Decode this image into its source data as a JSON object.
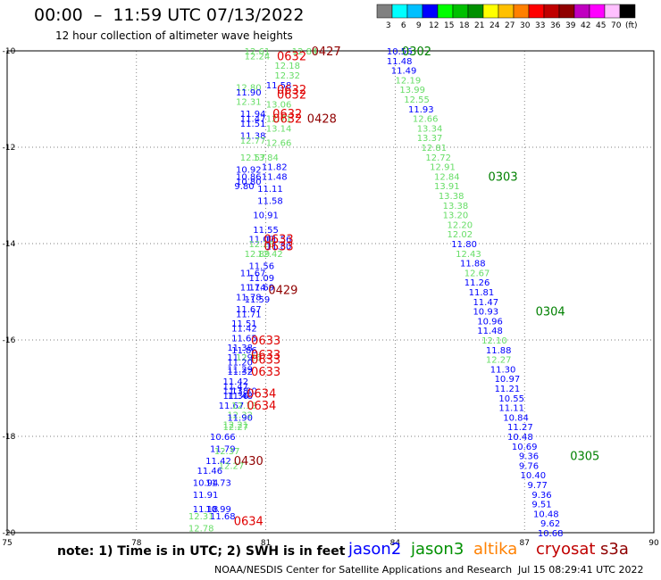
{
  "header": {
    "title": "00:00  –  11:59 UTC 07/13/2022",
    "subtitle": "12 hour collection of altimeter wave heights"
  },
  "colorbar": {
    "colors": [
      "#808080",
      "#00ffff",
      "#00c0ff",
      "#0000ff",
      "#00ff00",
      "#00c000",
      "#009000",
      "#ffff00",
      "#ffc000",
      "#ff8000",
      "#ff0000",
      "#c00000",
      "#900000",
      "#c000c0",
      "#ff00ff",
      "#ffc0ff",
      "#000000"
    ],
    "labels": [
      "3",
      "6",
      "9",
      "12",
      "15",
      "18",
      "21",
      "24",
      "27",
      "30",
      "33",
      "36",
      "39",
      "42",
      "45",
      "70",
      "(ft)"
    ]
  },
  "legend": {
    "note": "note:  1) Time is in UTC;  2) SWH is in feet",
    "items": [
      {
        "name": "jason2",
        "color": "#0000ff"
      },
      {
        "name": "jason3",
        "color": "#009000"
      },
      {
        "name": "altika",
        "color": "#ff8000"
      },
      {
        "name": "cryosat",
        "color": "#c00000"
      },
      {
        "name": "s3a",
        "color": "#900000"
      }
    ]
  },
  "footer": {
    "credit": "NOAA/NESDIS Center for Satellite Applications and Research",
    "timestamp": "Jul 15 08:29:41 UTC 2022"
  },
  "chart_data": {
    "type": "scatter",
    "xlim": [
      75,
      90
    ],
    "ylim": [
      -20,
      -10
    ],
    "xticks": [
      "75",
      "78",
      "81",
      "84",
      "87",
      "90"
    ],
    "yticks": [
      "-10",
      "-12",
      "-14",
      "-16",
      "-18",
      "-20"
    ],
    "grid": true,
    "points": [
      {
        "x": 80.8,
        "y": -10.0,
        "t": "12.61",
        "c": "#66dd66"
      },
      {
        "x": 81.9,
        "y": -10.0,
        "t": "12.84",
        "c": "#66dd66"
      },
      {
        "x": 80.8,
        "y": -10.1,
        "t": "12.24",
        "c": "#66dd66"
      },
      {
        "x": 81.5,
        "y": -10.3,
        "t": "12.18",
        "c": "#66dd66"
      },
      {
        "x": 81.5,
        "y": -10.5,
        "t": "12.32",
        "c": "#66dd66"
      },
      {
        "x": 81.3,
        "y": -10.7,
        "t": "11.58",
        "c": "#0000ff"
      },
      {
        "x": 80.6,
        "y": -10.75,
        "t": "12.80",
        "c": "#66dd66"
      },
      {
        "x": 80.6,
        "y": -10.85,
        "t": "11.90",
        "c": "#0000ff"
      },
      {
        "x": 80.6,
        "y": -11.05,
        "t": "12.31",
        "c": "#66dd66"
      },
      {
        "x": 81.3,
        "y": -11.1,
        "t": "13.06",
        "c": "#66dd66"
      },
      {
        "x": 80.7,
        "y": -11.3,
        "t": "11.94",
        "c": "#0000ff"
      },
      {
        "x": 80.7,
        "y": -11.4,
        "t": "11.47",
        "c": "#0000ff"
      },
      {
        "x": 81.3,
        "y": -11.4,
        "t": "12.71",
        "c": "#66dd66"
      },
      {
        "x": 80.7,
        "y": -11.5,
        "t": "11.51",
        "c": "#0000ff"
      },
      {
        "x": 81.3,
        "y": -11.6,
        "t": "13.14",
        "c": "#66dd66"
      },
      {
        "x": 80.7,
        "y": -11.75,
        "t": "11.38",
        "c": "#0000ff"
      },
      {
        "x": 80.7,
        "y": -11.85,
        "t": "12.77",
        "c": "#66dd66"
      },
      {
        "x": 81.3,
        "y": -11.9,
        "t": "12.66",
        "c": "#66dd66"
      },
      {
        "x": 81.0,
        "y": -12.2,
        "t": "13.84",
        "c": "#66dd66"
      },
      {
        "x": 80.7,
        "y": -12.2,
        "t": "12.57",
        "c": "#66dd66"
      },
      {
        "x": 81.2,
        "y": -12.4,
        "t": "11.82",
        "c": "#0000ff"
      },
      {
        "x": 80.6,
        "y": -12.45,
        "t": "10.92",
        "c": "#0000ff"
      },
      {
        "x": 80.6,
        "y": -12.6,
        "t": "10.86",
        "c": "#0000ff"
      },
      {
        "x": 81.2,
        "y": -12.6,
        "t": "11.48",
        "c": "#0000ff"
      },
      {
        "x": 80.6,
        "y": -12.7,
        "t": "10.80",
        "c": "#0000ff"
      },
      {
        "x": 80.5,
        "y": -12.8,
        "t": "9.80",
        "c": "#0000ff"
      },
      {
        "x": 81.1,
        "y": -12.85,
        "t": "11.11",
        "c": "#0000ff"
      },
      {
        "x": 81.1,
        "y": -13.1,
        "t": "11.58",
        "c": "#0000ff"
      },
      {
        "x": 81.0,
        "y": -13.4,
        "t": "10.91",
        "c": "#0000ff"
      },
      {
        "x": 81.0,
        "y": -13.7,
        "t": "11.55",
        "c": "#0000ff"
      },
      {
        "x": 80.9,
        "y": -13.9,
        "t": "11.07",
        "c": "#0000ff"
      },
      {
        "x": 81.3,
        "y": -13.9,
        "t": "11.56",
        "c": "#0000ff"
      },
      {
        "x": 80.9,
        "y": -14.0,
        "t": "12.28",
        "c": "#66dd66"
      },
      {
        "x": 81.3,
        "y": -14.05,
        "t": "11.80",
        "c": "#0000ff"
      },
      {
        "x": 80.8,
        "y": -14.2,
        "t": "12.89",
        "c": "#66dd66"
      },
      {
        "x": 81.1,
        "y": -14.2,
        "t": "12.42",
        "c": "#66dd66"
      },
      {
        "x": 80.9,
        "y": -14.45,
        "t": "11.56",
        "c": "#0000ff"
      },
      {
        "x": 80.7,
        "y": -14.6,
        "t": "11.67",
        "c": "#0000ff"
      },
      {
        "x": 80.9,
        "y": -14.7,
        "t": "11.09",
        "c": "#0000ff"
      },
      {
        "x": 80.7,
        "y": -14.9,
        "t": "11.74",
        "c": "#0000ff"
      },
      {
        "x": 80.9,
        "y": -14.9,
        "t": "11.69",
        "c": "#0000ff"
      },
      {
        "x": 80.6,
        "y": -15.1,
        "t": "11.78",
        "c": "#0000ff"
      },
      {
        "x": 80.8,
        "y": -15.15,
        "t": "11.59",
        "c": "#0000ff"
      },
      {
        "x": 80.6,
        "y": -15.35,
        "t": "11.67",
        "c": "#0000ff"
      },
      {
        "x": 80.6,
        "y": -15.45,
        "t": "11.71",
        "c": "#0000ff"
      },
      {
        "x": 80.5,
        "y": -15.65,
        "t": "11.51",
        "c": "#0000ff"
      },
      {
        "x": 80.5,
        "y": -15.75,
        "t": "11.42",
        "c": "#0000ff"
      },
      {
        "x": 80.5,
        "y": -15.95,
        "t": "11.65",
        "c": "#0000ff"
      },
      {
        "x": 80.4,
        "y": -16.15,
        "t": "11.38",
        "c": "#0000ff"
      },
      {
        "x": 80.5,
        "y": -16.2,
        "t": "11.86",
        "c": "#0000ff"
      },
      {
        "x": 80.4,
        "y": -16.35,
        "t": "11.29",
        "c": "#0000ff"
      },
      {
        "x": 80.6,
        "y": -16.35,
        "t": "12.26",
        "c": "#66dd66"
      },
      {
        "x": 80.4,
        "y": -16.45,
        "t": "11.20",
        "c": "#0000ff"
      },
      {
        "x": 80.4,
        "y": -16.6,
        "t": "11.29",
        "c": "#0000ff"
      },
      {
        "x": 80.4,
        "y": -16.65,
        "t": "11.32",
        "c": "#0000ff"
      },
      {
        "x": 80.3,
        "y": -16.85,
        "t": "11.42",
        "c": "#0000ff"
      },
      {
        "x": 80.3,
        "y": -16.95,
        "t": "11.47",
        "c": "#0000ff"
      },
      {
        "x": 80.3,
        "y": -17.05,
        "t": "11.38",
        "c": "#0000ff"
      },
      {
        "x": 80.5,
        "y": -17.05,
        "t": "11.30",
        "c": "#0000ff"
      },
      {
        "x": 80.3,
        "y": -17.15,
        "t": "11.36",
        "c": "#0000ff"
      },
      {
        "x": 80.4,
        "y": -17.15,
        "t": "11.48",
        "c": "#0000ff"
      },
      {
        "x": 80.2,
        "y": -17.35,
        "t": "11.67",
        "c": "#0000ff"
      },
      {
        "x": 80.5,
        "y": -17.35,
        "t": "12.13",
        "c": "#66dd66"
      },
      {
        "x": 80.4,
        "y": -17.55,
        "t": "12.32",
        "c": "#66dd66"
      },
      {
        "x": 80.4,
        "y": -17.6,
        "t": "11.90",
        "c": "#0000ff"
      },
      {
        "x": 80.3,
        "y": -17.75,
        "t": "12.21",
        "c": "#66dd66"
      },
      {
        "x": 80.3,
        "y": -17.8,
        "t": "12.27",
        "c": "#66dd66"
      },
      {
        "x": 80.0,
        "y": -18.0,
        "t": "10.66",
        "c": "#0000ff"
      },
      {
        "x": 80.0,
        "y": -18.25,
        "t": "11.79",
        "c": "#0000ff"
      },
      {
        "x": 80.1,
        "y": -18.3,
        "t": "12.37",
        "c": "#66dd66"
      },
      {
        "x": 79.9,
        "y": -18.5,
        "t": "11.42",
        "c": "#0000ff"
      },
      {
        "x": 80.2,
        "y": -18.6,
        "t": "12.27",
        "c": "#66dd66"
      },
      {
        "x": 79.7,
        "y": -18.7,
        "t": "11.46",
        "c": "#0000ff"
      },
      {
        "x": 79.6,
        "y": -18.95,
        "t": "10.94",
        "c": "#0000ff"
      },
      {
        "x": 79.9,
        "y": -18.95,
        "t": "11.73",
        "c": "#0000ff"
      },
      {
        "x": 79.6,
        "y": -19.2,
        "t": "11.91",
        "c": "#0000ff"
      },
      {
        "x": 79.6,
        "y": -19.5,
        "t": "11.18",
        "c": "#0000ff"
      },
      {
        "x": 79.9,
        "y": -19.5,
        "t": "10.99",
        "c": "#0000ff"
      },
      {
        "x": 79.5,
        "y": -19.65,
        "t": "12.31",
        "c": "#66dd66"
      },
      {
        "x": 80.0,
        "y": -19.65,
        "t": "11.68",
        "c": "#0000ff"
      },
      {
        "x": 79.5,
        "y": -19.9,
        "t": "12.78",
        "c": "#66dd66"
      },
      {
        "x": 84.1,
        "y": -10.0,
        "t": "10.56",
        "c": "#0000ff"
      },
      {
        "x": 84.1,
        "y": -10.2,
        "t": "11.48",
        "c": "#0000ff"
      },
      {
        "x": 84.2,
        "y": -10.4,
        "t": "11.49",
        "c": "#0000ff"
      },
      {
        "x": 84.3,
        "y": -10.6,
        "t": "12.19",
        "c": "#66dd66"
      },
      {
        "x": 84.4,
        "y": -10.8,
        "t": "13.99",
        "c": "#66dd66"
      },
      {
        "x": 84.5,
        "y": -11.0,
        "t": "12.55",
        "c": "#66dd66"
      },
      {
        "x": 84.6,
        "y": -11.2,
        "t": "11.93",
        "c": "#0000ff"
      },
      {
        "x": 84.7,
        "y": -11.4,
        "t": "12.66",
        "c": "#66dd66"
      },
      {
        "x": 84.8,
        "y": -11.6,
        "t": "13.34",
        "c": "#66dd66"
      },
      {
        "x": 84.8,
        "y": -11.8,
        "t": "13.37",
        "c": "#66dd66"
      },
      {
        "x": 84.9,
        "y": -12.0,
        "t": "12.81",
        "c": "#66dd66"
      },
      {
        "x": 85.0,
        "y": -12.2,
        "t": "12.72",
        "c": "#66dd66"
      },
      {
        "x": 85.1,
        "y": -12.4,
        "t": "12.91",
        "c": "#66dd66"
      },
      {
        "x": 85.2,
        "y": -12.6,
        "t": "12.84",
        "c": "#66dd66"
      },
      {
        "x": 85.2,
        "y": -12.8,
        "t": "13.91",
        "c": "#66dd66"
      },
      {
        "x": 85.3,
        "y": -13.0,
        "t": "13.38",
        "c": "#66dd66"
      },
      {
        "x": 85.4,
        "y": -13.2,
        "t": "13.38",
        "c": "#66dd66"
      },
      {
        "x": 85.4,
        "y": -13.4,
        "t": "13.20",
        "c": "#66dd66"
      },
      {
        "x": 85.5,
        "y": -13.6,
        "t": "12.20",
        "c": "#66dd66"
      },
      {
        "x": 85.5,
        "y": -13.8,
        "t": "12.02",
        "c": "#66dd66"
      },
      {
        "x": 85.6,
        "y": -14.0,
        "t": "11.80",
        "c": "#0000ff"
      },
      {
        "x": 85.7,
        "y": -14.2,
        "t": "12.43",
        "c": "#66dd66"
      },
      {
        "x": 85.8,
        "y": -14.4,
        "t": "11.88",
        "c": "#0000ff"
      },
      {
        "x": 85.9,
        "y": -14.6,
        "t": "12.67",
        "c": "#66dd66"
      },
      {
        "x": 85.9,
        "y": -14.8,
        "t": "11.26",
        "c": "#0000ff"
      },
      {
        "x": 86.0,
        "y": -15.0,
        "t": "11.81",
        "c": "#0000ff"
      },
      {
        "x": 86.1,
        "y": -15.2,
        "t": "11.47",
        "c": "#0000ff"
      },
      {
        "x": 86.1,
        "y": -15.4,
        "t": "10.93",
        "c": "#0000ff"
      },
      {
        "x": 86.2,
        "y": -15.6,
        "t": "10.96",
        "c": "#0000ff"
      },
      {
        "x": 86.2,
        "y": -15.8,
        "t": "11.48",
        "c": "#0000ff"
      },
      {
        "x": 86.3,
        "y": -16.0,
        "t": "12.10",
        "c": "#66dd66"
      },
      {
        "x": 86.4,
        "y": -16.2,
        "t": "11.88",
        "c": "#0000ff"
      },
      {
        "x": 86.4,
        "y": -16.4,
        "t": "12.27",
        "c": "#66dd66"
      },
      {
        "x": 86.5,
        "y": -16.6,
        "t": "11.30",
        "c": "#0000ff"
      },
      {
        "x": 86.6,
        "y": -16.8,
        "t": "10.97",
        "c": "#0000ff"
      },
      {
        "x": 86.6,
        "y": -17.0,
        "t": "11.21",
        "c": "#0000ff"
      },
      {
        "x": 86.7,
        "y": -17.2,
        "t": "10.55",
        "c": "#0000ff"
      },
      {
        "x": 86.7,
        "y": -17.4,
        "t": "11.11",
        "c": "#0000ff"
      },
      {
        "x": 86.8,
        "y": -17.6,
        "t": "10.84",
        "c": "#0000ff"
      },
      {
        "x": 86.9,
        "y": -17.8,
        "t": "11.27",
        "c": "#0000ff"
      },
      {
        "x": 86.9,
        "y": -18.0,
        "t": "10.48",
        "c": "#0000ff"
      },
      {
        "x": 87.0,
        "y": -18.2,
        "t": "10.69",
        "c": "#0000ff"
      },
      {
        "x": 87.1,
        "y": -18.4,
        "t": "9.36",
        "c": "#0000ff"
      },
      {
        "x": 87.1,
        "y": -18.6,
        "t": "9.76",
        "c": "#0000ff"
      },
      {
        "x": 87.2,
        "y": -18.8,
        "t": "10.40",
        "c": "#0000ff"
      },
      {
        "x": 87.3,
        "y": -19.0,
        "t": "9.77",
        "c": "#0000ff"
      },
      {
        "x": 87.4,
        "y": -19.2,
        "t": "9.36",
        "c": "#0000ff"
      },
      {
        "x": 87.4,
        "y": -19.4,
        "t": "9.51",
        "c": "#0000ff"
      },
      {
        "x": 87.5,
        "y": -19.6,
        "t": "10.48",
        "c": "#0000ff"
      },
      {
        "x": 87.6,
        "y": -19.8,
        "t": "9.62",
        "c": "#0000ff"
      },
      {
        "x": 87.6,
        "y": -20.0,
        "t": "10.68",
        "c": "#0000ff"
      }
    ],
    "annotations": [
      {
        "x": 82.4,
        "y": -10.0,
        "t": "0427",
        "c": "#900000"
      },
      {
        "x": 81.6,
        "y": -10.1,
        "t": "0632",
        "c": "#e00000"
      },
      {
        "x": 81.6,
        "y": -10.8,
        "t": "0632",
        "c": "#e00000"
      },
      {
        "x": 81.6,
        "y": -10.9,
        "t": "0632",
        "c": "#e00000"
      },
      {
        "x": 81.5,
        "y": -11.3,
        "t": "0632",
        "c": "#e00000"
      },
      {
        "x": 81.5,
        "y": -11.4,
        "t": "0632",
        "c": "#e00000"
      },
      {
        "x": 82.3,
        "y": -11.4,
        "t": "0428",
        "c": "#900000"
      },
      {
        "x": 81.3,
        "y": -13.9,
        "t": "0633",
        "c": "#e00000"
      },
      {
        "x": 81.3,
        "y": -14.05,
        "t": "0633",
        "c": "#e00000"
      },
      {
        "x": 81.4,
        "y": -14.95,
        "t": "0429",
        "c": "#900000"
      },
      {
        "x": 81.0,
        "y": -16.0,
        "t": "0633",
        "c": "#e00000"
      },
      {
        "x": 81.0,
        "y": -16.3,
        "t": "0633",
        "c": "#e00000"
      },
      {
        "x": 81.0,
        "y": -16.4,
        "t": "0633",
        "c": "#e00000"
      },
      {
        "x": 81.0,
        "y": -16.65,
        "t": "0633",
        "c": "#e00000"
      },
      {
        "x": 80.9,
        "y": -17.1,
        "t": "0634",
        "c": "#e00000"
      },
      {
        "x": 80.9,
        "y": -17.35,
        "t": "0634",
        "c": "#e00000"
      },
      {
        "x": 80.6,
        "y": -18.5,
        "t": "0430",
        "c": "#900000"
      },
      {
        "x": 80.6,
        "y": -19.75,
        "t": "0634",
        "c": "#e00000"
      },
      {
        "x": 84.5,
        "y": -10.0,
        "t": "0302",
        "c": "#008000"
      },
      {
        "x": 86.5,
        "y": -12.6,
        "t": "0303",
        "c": "#008000"
      },
      {
        "x": 87.6,
        "y": -15.4,
        "t": "0304",
        "c": "#008000"
      },
      {
        "x": 88.4,
        "y": -18.4,
        "t": "0305",
        "c": "#008000"
      }
    ]
  }
}
